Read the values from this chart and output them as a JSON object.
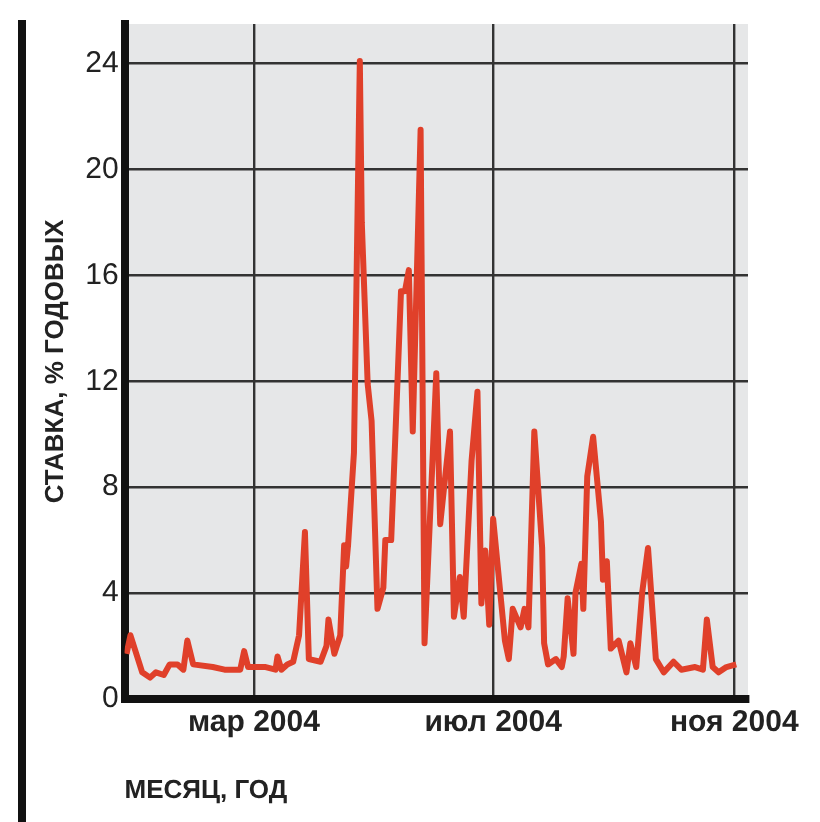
{
  "chart_data": {
    "type": "line",
    "xlabel": "МЕСЯЦ, ГОД",
    "ylabel": "СТАВКА, % ГОДОВЫХ",
    "xlim": [
      "2003-12-26",
      "2004-11-08"
    ],
    "ylim": [
      0,
      25.5
    ],
    "yticks": [
      0,
      4,
      8,
      12,
      16,
      20,
      24
    ],
    "xticks": [
      {
        "value": "2004-03-01",
        "label": "мар 2004"
      },
      {
        "value": "2004-07-01",
        "label": "июл 2004"
      },
      {
        "value": "2004-11-01",
        "label": "ноя 2004"
      }
    ],
    "grid": true,
    "legend": false,
    "marker": "none",
    "line_style": "solid",
    "series": [
      {
        "color": "#e0402a",
        "x": [
          "2003-12-27",
          "2003-12-29",
          "2004-01-04",
          "2004-01-08",
          "2004-01-11",
          "2004-01-15",
          "2004-01-18",
          "2004-01-22",
          "2004-01-25",
          "2004-01-27",
          "2004-01-30",
          "2004-02-09",
          "2004-02-15",
          "2004-02-23",
          "2004-02-25",
          "2004-02-27",
          "2004-03-07",
          "2004-03-12",
          "2004-03-13",
          "2004-03-15",
          "2004-03-18",
          "2004-03-21",
          "2004-03-24",
          "2004-03-27",
          "2004-03-29",
          "2004-04-04",
          "2004-04-07",
          "2004-04-08",
          "2004-04-11",
          "2004-04-14",
          "2004-04-16",
          "2004-04-17",
          "2004-04-18",
          "2004-04-21",
          "2004-04-24",
          "2004-04-25",
          "2004-04-28",
          "2004-04-30",
          "2004-05-03",
          "2004-05-06",
          "2004-05-07",
          "2004-05-10",
          "2004-05-12",
          "2004-05-15",
          "2004-05-17",
          "2004-05-19",
          "2004-05-21",
          "2004-05-25",
          "2004-05-27",
          "2004-06-02",
          "2004-06-04",
          "2004-06-09",
          "2004-06-11",
          "2004-06-14",
          "2004-06-16",
          "2004-06-20",
          "2004-06-23",
          "2004-06-25",
          "2004-06-27",
          "2004-06-29",
          "2004-07-01",
          "2004-07-07",
          "2004-07-09",
          "2004-07-11",
          "2004-07-15",
          "2004-07-17",
          "2004-07-19",
          "2004-07-22",
          "2004-07-26",
          "2004-07-27",
          "2004-07-29",
          "2004-08-02",
          "2004-08-05",
          "2004-08-06",
          "2004-08-08",
          "2004-08-11",
          "2004-08-12",
          "2004-08-15",
          "2004-08-16",
          "2004-08-18",
          "2004-08-21",
          "2004-08-25",
          "2004-08-26",
          "2004-08-28",
          "2004-08-30",
          "2004-09-03",
          "2004-09-07",
          "2004-09-09",
          "2004-09-12",
          "2004-09-15",
          "2004-09-18",
          "2004-09-22",
          "2004-09-26",
          "2004-10-01",
          "2004-10-05",
          "2004-10-12",
          "2004-10-16",
          "2004-10-18",
          "2004-10-21",
          "2004-10-24",
          "2004-10-28",
          "2004-11-02"
        ],
        "values": [
          1.7,
          2.4,
          1.0,
          0.8,
          1.0,
          0.9,
          1.3,
          1.3,
          1.1,
          2.2,
          1.3,
          1.2,
          1.1,
          1.1,
          1.8,
          1.2,
          1.2,
          1.1,
          1.6,
          1.1,
          1.3,
          1.4,
          2.4,
          6.3,
          1.5,
          1.4,
          2.0,
          3.0,
          1.7,
          2.4,
          5.8,
          5.0,
          5.8,
          9.3,
          24.1,
          18.0,
          11.9,
          10.5,
          3.4,
          4.2,
          6.0,
          6.0,
          9.7,
          15.4,
          15.4,
          16.2,
          10.1,
          21.5,
          2.1,
          12.3,
          6.6,
          10.1,
          3.1,
          4.6,
          3.1,
          9.0,
          11.6,
          3.6,
          5.6,
          2.8,
          6.8,
          2.2,
          1.5,
          3.4,
          2.7,
          3.4,
          2.7,
          10.1,
          5.7,
          2.1,
          1.3,
          1.5,
          1.2,
          1.6,
          3.8,
          1.7,
          4.0,
          5.1,
          3.4,
          8.4,
          9.9,
          6.7,
          4.5,
          5.2,
          1.9,
          2.2,
          1.0,
          2.1,
          1.2,
          4.0,
          5.7,
          1.5,
          1.0,
          1.4,
          1.1,
          1.2,
          1.1,
          3.0,
          1.2,
          1.0,
          1.2,
          1.3
        ]
      }
    ]
  }
}
